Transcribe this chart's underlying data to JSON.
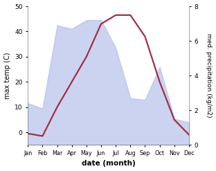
{
  "months": [
    "Jan",
    "Feb",
    "Mar",
    "Apr",
    "May",
    "Jun",
    "Jul",
    "Aug",
    "Sep",
    "Oct",
    "Nov",
    "Dec"
  ],
  "month_positions": [
    1,
    2,
    3,
    4,
    5,
    6,
    7,
    8,
    9,
    10,
    11,
    12
  ],
  "temp_max": [
    -0.5,
    -1.5,
    10,
    20,
    30,
    43,
    46.5,
    46.5,
    38,
    20,
    5,
    -1.0
  ],
  "precip_kg": [
    2.4,
    2.1,
    6.9,
    6.7,
    7.2,
    7.2,
    5.6,
    2.7,
    2.6,
    4.5,
    1.5,
    1.3
  ],
  "temp_ylim": [
    -5,
    50
  ],
  "precip_ylim": [
    0,
    8
  ],
  "temp_yticks": [
    0,
    10,
    20,
    30,
    40,
    50
  ],
  "precip_yticks": [
    0,
    2,
    4,
    6,
    8
  ],
  "fill_color": "#b0bce8",
  "fill_alpha": 0.65,
  "line_color": "#a03040",
  "line_width": 1.6,
  "xlabel": "date (month)",
  "ylabel_left": "max temp (C)",
  "ylabel_right": "med. precipitation (kg/m2)",
  "bg_color": "#ffffff"
}
